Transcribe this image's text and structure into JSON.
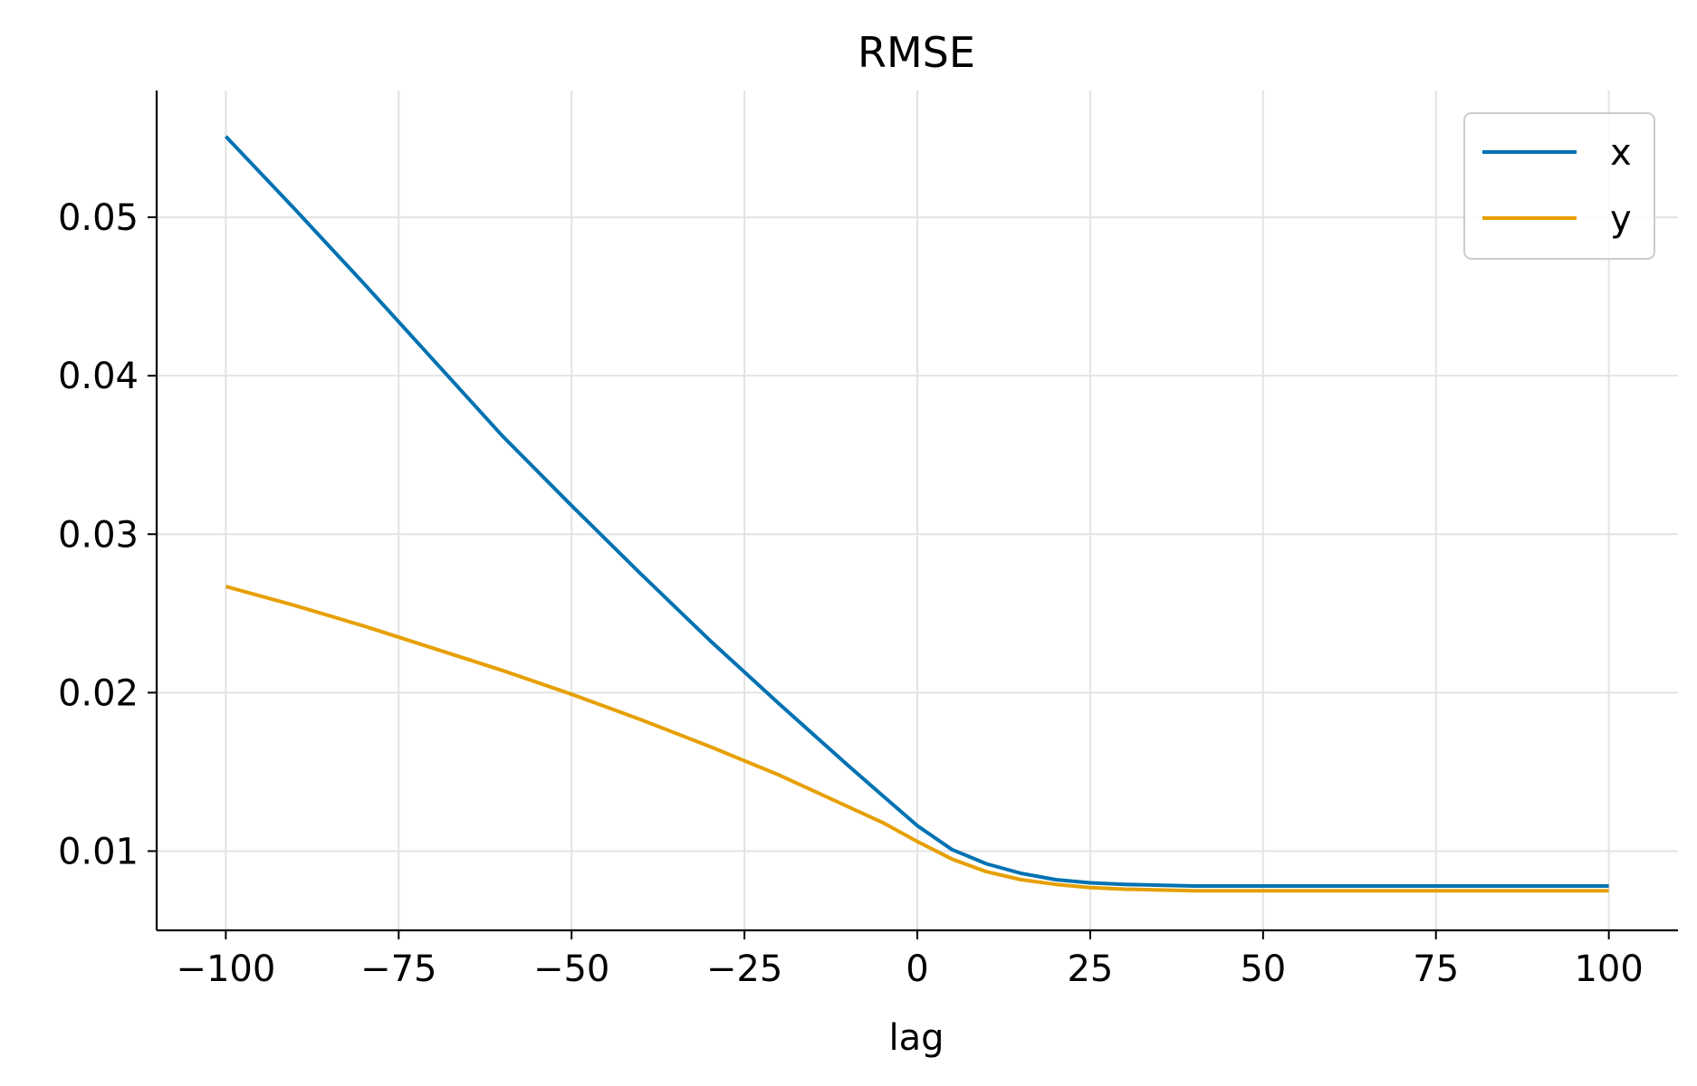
{
  "chart_data": {
    "type": "line",
    "title": "RMSE",
    "xlabel": "lag",
    "ylabel": "",
    "xlim": [
      -110,
      110
    ],
    "ylim": [
      0.005,
      0.058
    ],
    "xticks": [
      -100,
      -75,
      -50,
      -25,
      0,
      25,
      50,
      75,
      100
    ],
    "xtick_labels": [
      "−100",
      "−75",
      "−50",
      "−25",
      "0",
      "25",
      "50",
      "75",
      "100"
    ],
    "yticks": [
      0.01,
      0.02,
      0.03,
      0.04,
      0.05
    ],
    "ytick_labels": [
      "0.01",
      "0.02",
      "0.03",
      "0.04",
      "0.05"
    ],
    "grid": true,
    "legend_position": "top-right",
    "x": [
      -100,
      -90,
      -80,
      -70,
      -60,
      -50,
      -40,
      -30,
      -20,
      -10,
      -5,
      0,
      5,
      10,
      15,
      20,
      25,
      30,
      40,
      50,
      60,
      70,
      80,
      90,
      100
    ],
    "series": [
      {
        "name": "x",
        "color": "#0072b2",
        "values": [
          0.0551,
          0.0505,
          0.0458,
          0.041,
          0.0362,
          0.0318,
          0.0275,
          0.0233,
          0.0193,
          0.0154,
          0.0135,
          0.0116,
          0.0101,
          0.0092,
          0.0086,
          0.0082,
          0.008,
          0.0079,
          0.0078,
          0.0078,
          0.0078,
          0.0078,
          0.0078,
          0.0078,
          0.0078
        ]
      },
      {
        "name": "y",
        "color": "#e69f00",
        "values": [
          0.0267,
          0.0255,
          0.0242,
          0.0228,
          0.0214,
          0.0199,
          0.0183,
          0.0166,
          0.0148,
          0.0128,
          0.0118,
          0.0106,
          0.0095,
          0.0087,
          0.0082,
          0.0079,
          0.0077,
          0.0076,
          0.0075,
          0.0075,
          0.0075,
          0.0075,
          0.0075,
          0.0075,
          0.0075
        ]
      }
    ]
  }
}
